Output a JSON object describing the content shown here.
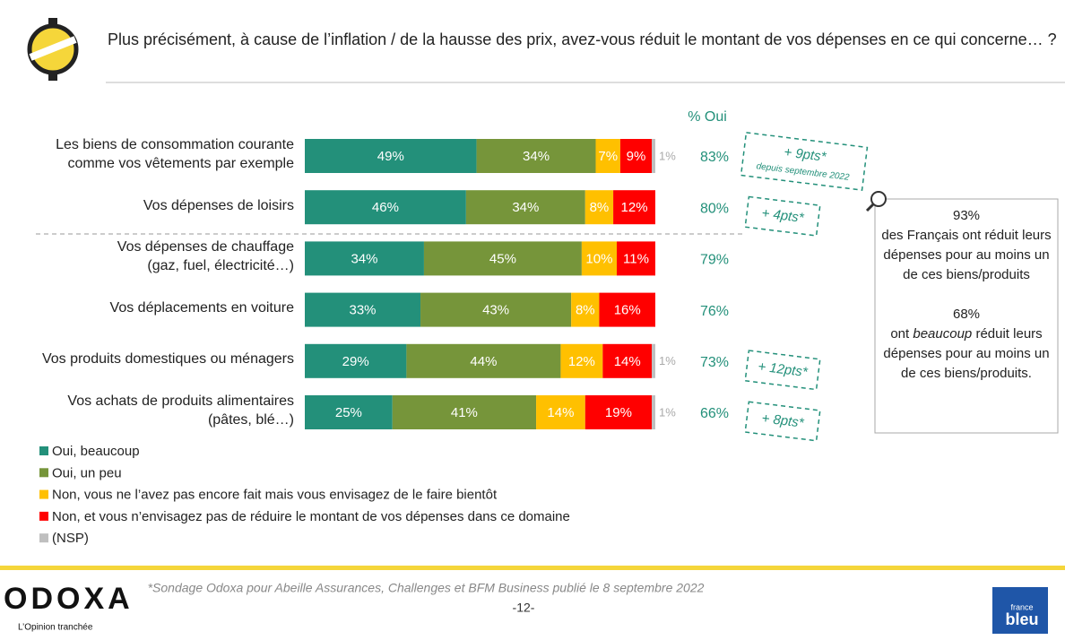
{
  "chart_data": {
    "type": "stacked_bar_horizontal",
    "title": "Plus précisément, à cause de l’inflation / de la hausse des prix, avez-vous réduit le montant de vos dépenses en ce qui concerne… ?",
    "categories": [
      "Les biens de consommation courante\ncomme vos vêtements par exemple",
      "Vos dépenses de loisirs",
      "Vos dépenses de chauffage\n(gaz, fuel, électricité…)",
      "Vos déplacements en voiture",
      "Vos produits domestiques ou ménagers",
      "Vos achats de produits alimentaires\n(pâtes, blé…)"
    ],
    "xlim": [
      0,
      100
    ],
    "series": [
      {
        "name": "Oui, beaucoup",
        "color": "#23907a",
        "values": [
          49,
          46,
          34,
          33,
          29,
          25
        ],
        "value_labels": [
          "49%",
          "46%",
          "34%",
          "33%",
          "29%",
          "25%"
        ]
      },
      {
        "name": "Oui, un peu",
        "color": "#76953a",
        "values": [
          34,
          34,
          45,
          43,
          44,
          41
        ],
        "value_labels": [
          "34%",
          "34%",
          "45%",
          "43%",
          "44%",
          "41%"
        ]
      },
      {
        "name": "Non, vous ne l’avez pas encore fait mais vous envisagez de le faire bientôt",
        "color": "#ffc000",
        "values": [
          7,
          8,
          10,
          8,
          12,
          14
        ],
        "value_labels": [
          "7%",
          "8%",
          "10%",
          "8%",
          "12%",
          "14%"
        ]
      },
      {
        "name": "Non, et vous n’envisagez pas de réduire le montant de vos dépenses dans ce domaine",
        "color": "#ff0000",
        "values": [
          9,
          12,
          11,
          16,
          14,
          19
        ],
        "value_labels": [
          "9%",
          "12%",
          "11%",
          "16%",
          "14%",
          "19%"
        ]
      },
      {
        "name": "(NSP)",
        "color": "#bfbfbf",
        "values": [
          1,
          null,
          null,
          null,
          1,
          1
        ],
        "value_labels": [
          "1%",
          null,
          null,
          null,
          "1%",
          "1%"
        ]
      }
    ],
    "oui_total": {
      "title": "% Oui",
      "values": [
        83,
        80,
        79,
        76,
        73,
        66
      ],
      "value_labels": [
        "83%",
        "80%",
        "79%",
        "76%",
        "73%",
        "66%"
      ]
    },
    "evolutions": [
      "+ 9pts*",
      "+ 4pts*",
      null,
      null,
      "+ 12pts*",
      "+ 8pts*"
    ],
    "evolution_note": "depuis septembre 2022",
    "callout": {
      "value1": "93%",
      "text1": "des Français ont réduit leurs dépenses pour au moins un de ces biens/produits",
      "value2": "68%",
      "text2a": "ont",
      "text2b": "beaucoup",
      "text2c": "réduit leurs dépenses pour au moins un de ces biens/produits."
    },
    "source": "*Sondage Odoxa pour Abeille Assurances, Challenges et BFM Business publié le 8 septembre 2022",
    "page_number": "-12-",
    "logo": "ODOXA",
    "tagline": "L’Opinion tranchée",
    "partner_logo": [
      "france",
      "bleu"
    ]
  }
}
